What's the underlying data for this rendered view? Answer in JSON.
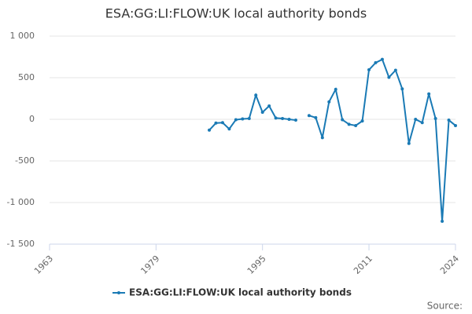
{
  "chart_data": {
    "type": "line",
    "title": "ESA:GG:LI:FLOW:UK local authority bonds",
    "x": [
      1987,
      1988,
      1989,
      1990,
      1991,
      1992,
      1993,
      1994,
      1995,
      1996,
      1997,
      1998,
      1999,
      2000,
      2001,
      2002,
      2003,
      2004,
      2005,
      2006,
      2007,
      2008,
      2009,
      2010,
      2011,
      2012,
      2013,
      2014,
      2015,
      2016,
      2017,
      2018,
      2019,
      2020,
      2021,
      2022,
      2023,
      2024
    ],
    "series": [
      {
        "name": "ESA:GG:LI:FLOW:UK local authority bonds",
        "color": "#1a7ab5",
        "values": [
          -130,
          -45,
          -40,
          -115,
          -5,
          5,
          10,
          290,
          85,
          160,
          15,
          10,
          0,
          -10,
          null,
          45,
          20,
          -220,
          210,
          360,
          -5,
          -60,
          -75,
          -20,
          595,
          680,
          720,
          505,
          590,
          365,
          -290,
          0,
          -40,
          305,
          10,
          -1225,
          -10,
          -75
        ]
      }
    ],
    "xlim": [
      1963,
      2024
    ],
    "xticks": [
      1963,
      1979,
      1995,
      2011,
      2024
    ],
    "ylim": [
      -1500,
      1000
    ],
    "yticks": [
      {
        "value": -1500,
        "label": "-1 500"
      },
      {
        "value": -1000,
        "label": "-1 000"
      },
      -500,
      0,
      500,
      {
        "value": 1000,
        "label": "1 000"
      }
    ],
    "grid": true,
    "legend": "bottom",
    "source": "Source:"
  }
}
